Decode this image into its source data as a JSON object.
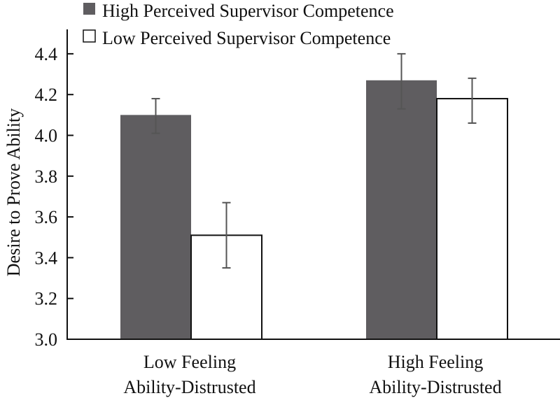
{
  "chart_data": {
    "type": "bar",
    "title": "",
    "xlabel": "",
    "ylabel": "Desire to Prove Ability",
    "ylim": [
      3.0,
      4.5
    ],
    "yticks": [
      3.0,
      3.2,
      3.4,
      3.6,
      3.8,
      4.0,
      4.2,
      4.4
    ],
    "ytick_labels": [
      "3.0",
      "3.2",
      "3.4",
      "3.6",
      "3.8",
      "4.0",
      "4.2",
      "4.4"
    ],
    "grid": false,
    "legend_position": "top",
    "categories": [
      [
        "Low Feeling",
        "Ability-Distrusted"
      ],
      [
        "High Feeling",
        "Ability-Distrusted"
      ]
    ],
    "series": [
      {
        "name": "High Perceived Supervisor Competence",
        "color": "#5f5d60",
        "values": [
          4.1,
          4.27
        ],
        "error_low": [
          4.01,
          4.13
        ],
        "error_high": [
          4.18,
          4.4
        ]
      },
      {
        "name": "Low Perceived Supervisor Competence",
        "color": "#ffffff",
        "values": [
          3.51,
          4.18
        ],
        "error_low": [
          3.35,
          4.06
        ],
        "error_high": [
          3.67,
          4.28
        ]
      }
    ],
    "error_bar_color": "#555555"
  }
}
